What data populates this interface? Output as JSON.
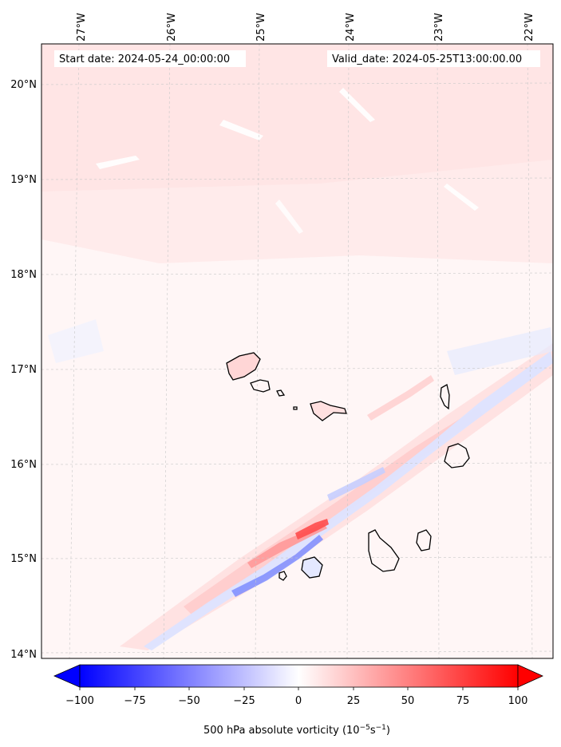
{
  "header": {
    "start_date": "Start date: 2024-05-24_00:00:00",
    "valid_date": "Valid_date: 2024-05-25T13:00:00.00"
  },
  "axes": {
    "lon_ticks": [
      "27°W",
      "26°W",
      "25°W",
      "24°W",
      "23°W",
      "22°W"
    ],
    "lat_ticks": [
      "20°N",
      "19°N",
      "18°N",
      "17°N",
      "16°N",
      "15°N",
      "14°N"
    ]
  },
  "colorbar": {
    "ticks": [
      "−100",
      "−75",
      "−50",
      "−25",
      "0",
      "25",
      "50",
      "75",
      "100"
    ],
    "label_main": "500 hPa absolute vorticity (10",
    "label_exp1": "−5",
    "label_mid": "s",
    "label_exp2": "−1",
    "label_end": ")",
    "min_value": -100,
    "max_value": 100,
    "min_color": "#0000ff",
    "mid_color": "#ffffff",
    "max_color": "#ff0000"
  },
  "colors": {
    "background_tint": "#fff6f6",
    "positive_light": "#ffe4e4",
    "negative_light": "#e8ecff",
    "coast": "#000000",
    "grid": "#c8c8c8"
  }
}
